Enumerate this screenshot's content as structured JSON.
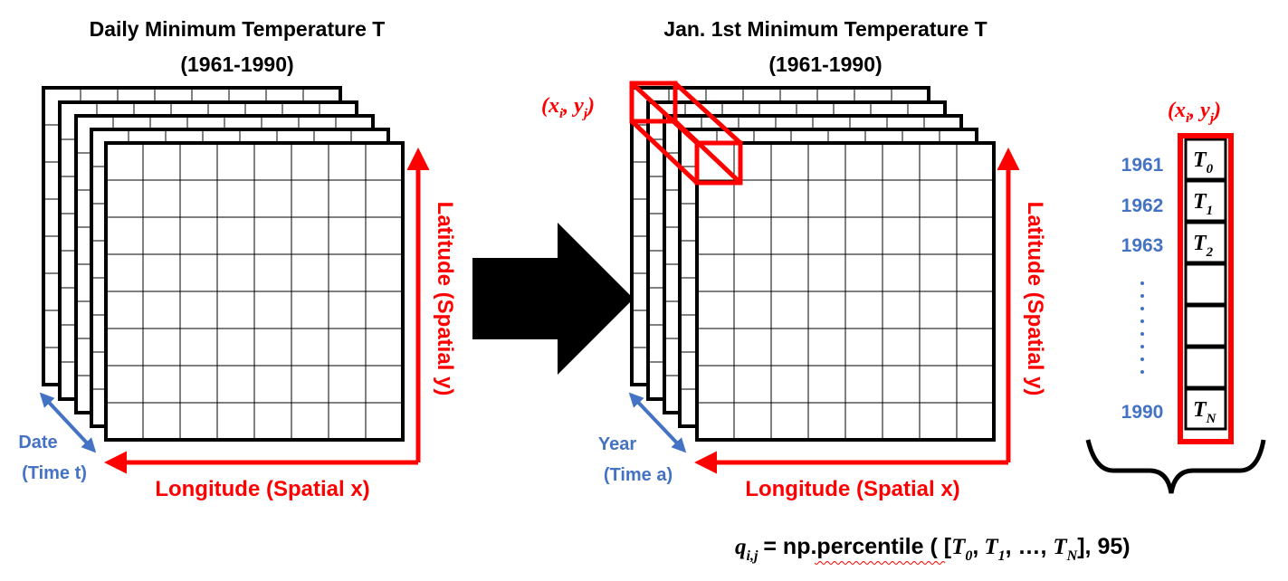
{
  "left_panel": {
    "title_line1": "Daily Minimum Temperature T",
    "title_line2": "(1961-1990)",
    "x_axis_label": "Longitude (Spatial x)",
    "y_axis_label": "Latitude (Spatial y)",
    "time_label_line1": "Date",
    "time_label_line2": "(Time t)"
  },
  "right_panel": {
    "title_line1": "Jan. 1st Minimum Temperature T",
    "title_line2": "(1961-1990)",
    "x_axis_label": "Longitude (Spatial x)",
    "y_axis_label": "Latitude (Spatial y)",
    "time_label_line1": "Year",
    "time_label_line2": "(Time a)",
    "cell_label": "(x_i, y_j)"
  },
  "column": {
    "header": "(x_i, y_j)",
    "years": [
      "1961",
      "1962",
      "1963",
      "1990"
    ],
    "cells": [
      {
        "base": "T",
        "sub": "0"
      },
      {
        "base": "T",
        "sub": "1"
      },
      {
        "base": "T",
        "sub": "2"
      },
      {
        "base": "",
        "sub": ""
      },
      {
        "base": "",
        "sub": ""
      },
      {
        "base": "",
        "sub": ""
      },
      {
        "base": "T",
        "sub": "N"
      }
    ]
  },
  "formula": {
    "lhs_base": "q",
    "lhs_sub": "i,j",
    "function": "= np.percentile ( [",
    "t0_base": "T",
    "t0_sub": "0",
    "t1_base": "T",
    "t1_sub": "1",
    "tn_base": "T",
    "tn_sub": "N",
    "sep": ",",
    "ellipsis": ", …, ",
    "closing": "], 95)"
  },
  "colors": {
    "red": "#ff0000",
    "blue": "#4472c4",
    "black": "#000000"
  }
}
